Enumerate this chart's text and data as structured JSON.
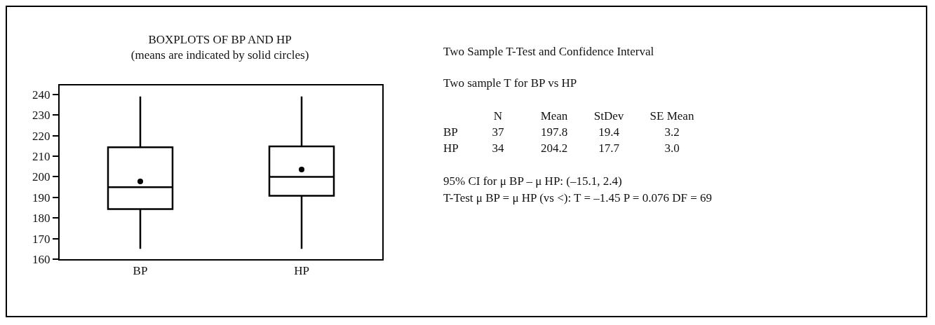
{
  "chart_data": [
    {
      "type": "box",
      "title": "BOXPLOTS OF BP AND HP",
      "subtitle": "(means are indicated by solid circles)",
      "categories": [
        "BP",
        "HP"
      ],
      "series": [
        {
          "color": "#000000",
          "boxes": [
            {
              "low": 165,
              "q1": 184.3,
              "median": 195,
              "q3": 214.4,
              "high": 239,
              "mean": 197.8
            },
            {
              "low": 165,
              "q1": 190.8,
              "median": 200,
              "q3": 214.8,
              "high": 239,
              "mean": 203.6
            }
          ]
        }
      ],
      "ylim": [
        160,
        244.4
      ],
      "yticks": [
        160,
        170,
        180,
        190,
        200,
        210,
        220,
        230,
        240
      ],
      "grid": false,
      "marker": "circle"
    },
    {
      "type": "other",
      "title": "Two Sample T-Test and Confidence Interval",
      "subtitle": "Two sample T for BP vs HP",
      "categories": [
        "N",
        "Mean",
        "StDev",
        "SE Mean"
      ],
      "y_categories": [
        "BP",
        "HP"
      ],
      "cell_labels": [
        [
          "37",
          "197.8",
          "19.4",
          "3.2"
        ],
        [
          "34",
          "204.2",
          "17.7",
          "3.0"
        ]
      ],
      "annotations": [
        "95% CI for μ BP – μ HP:  (–15.1, 2.4)",
        "T-Test μ BP = μ HP (vs <):  T = –1.45  P = 0.076  DF = 69"
      ]
    }
  ]
}
